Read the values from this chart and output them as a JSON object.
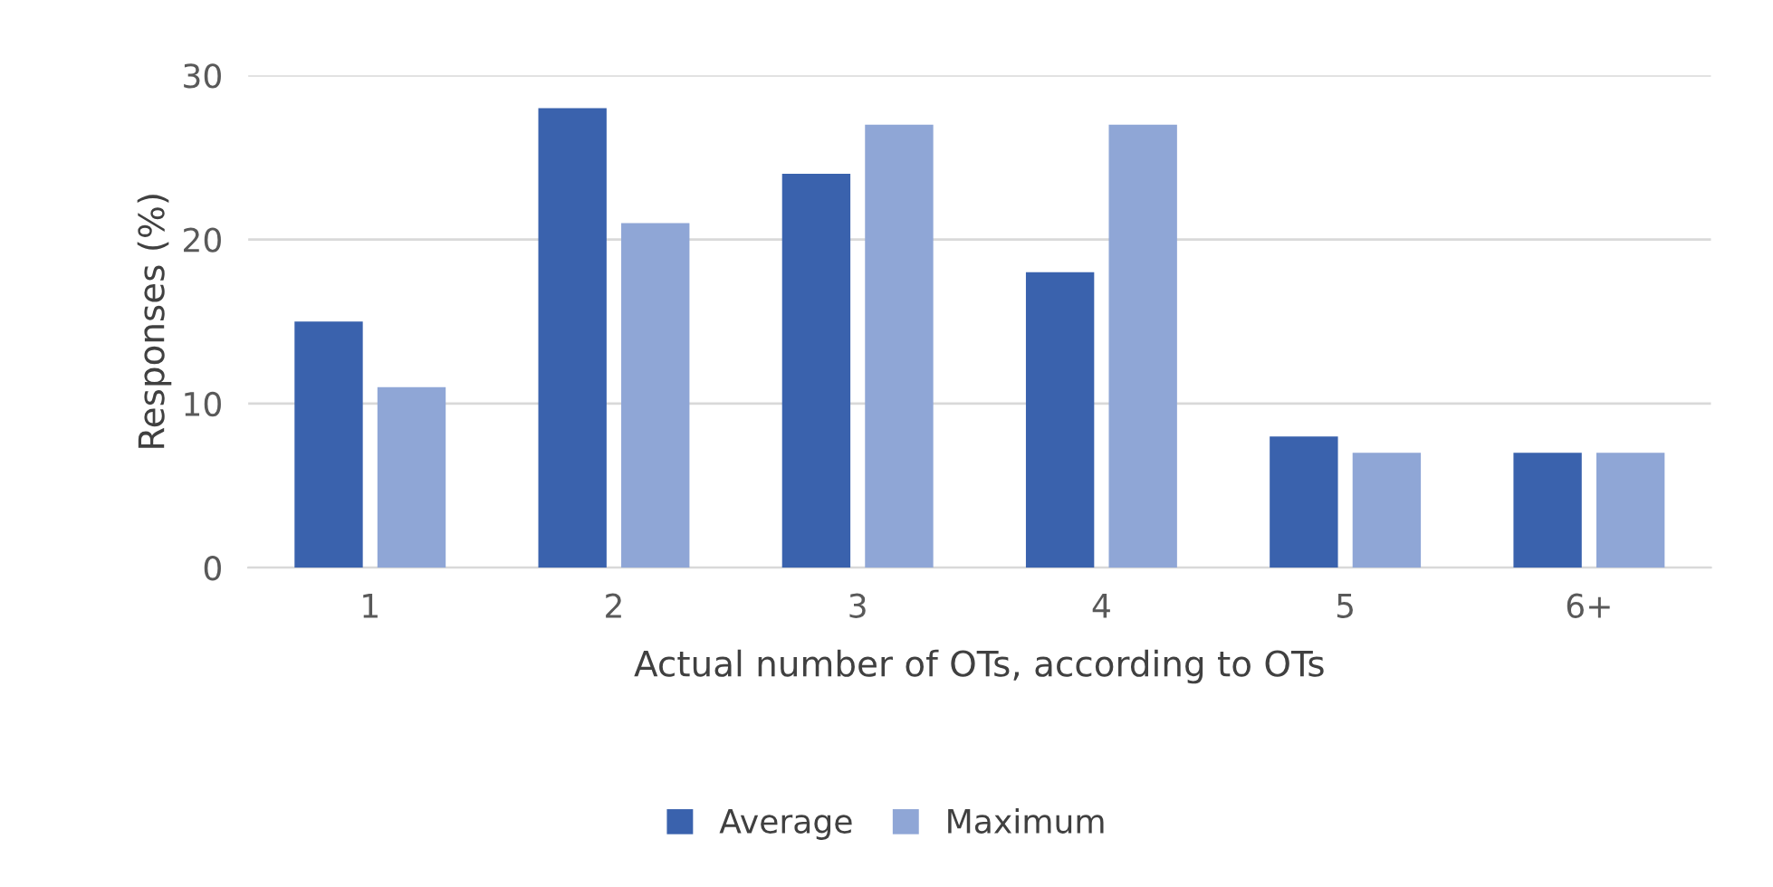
{
  "chart_data": {
    "type": "bar",
    "xlabel": "Actual number of OTs, according to OTs",
    "ylabel": "Responses (%)",
    "categories": [
      "1",
      "2",
      "3",
      "4",
      "5",
      "6+"
    ],
    "series": [
      {
        "name": "Average",
        "color": "#3a62ad",
        "values": [
          15,
          28,
          24,
          18,
          8,
          7
        ]
      },
      {
        "name": "Maximum",
        "color": "#8fa6d6",
        "values": [
          11,
          21,
          27,
          27,
          7,
          7
        ]
      }
    ],
    "ylim": [
      0,
      30
    ],
    "yticks": [
      0,
      10,
      20,
      30
    ],
    "grid": "y",
    "legend": "bottom"
  }
}
